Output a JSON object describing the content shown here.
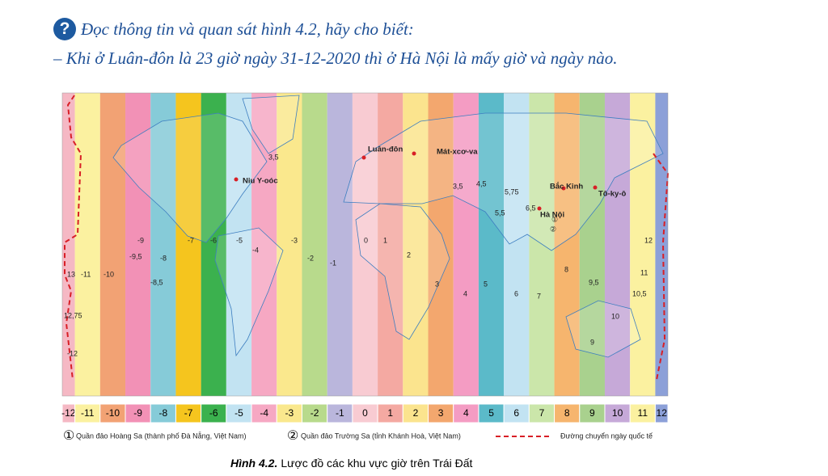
{
  "question": {
    "icon": "?",
    "line1": "Đọc thông tin và quan sát hình 4.2, hãy cho biết:",
    "line2": "– Khi ở Luân-đôn là 23 giờ ngày 31-12-2020 thì ở Hà Nội là mấy giờ và ngày nào."
  },
  "map": {
    "labels": [
      "3,5",
      "Niu Y-oóc",
      "Luân-đôn",
      "Mát-xcơ-va",
      "3,5",
      "4,5",
      "5,75",
      "5,5",
      "Bắc Kinh",
      "Tô-ky-ô",
      "6,5",
      "Hà Nội",
      "①",
      "②",
      "-9",
      "-9,5",
      "-8",
      "-7",
      "-6",
      "-5",
      "-4",
      "-3",
      "-2",
      "-1",
      "0",
      "1",
      "2",
      "3",
      "4",
      "5",
      "6",
      "7",
      "8",
      "9,5",
      "9",
      "10",
      "10,5",
      "11",
      "12",
      "-10",
      "-11",
      "13",
      "-8,5",
      "12,75",
      "-12"
    ]
  },
  "legend": {
    "zones": [
      {
        "label": "-12",
        "color": "#f5b8c4"
      },
      {
        "label": "-11",
        "color": "#fbf1a0"
      },
      {
        "label": "-10",
        "color": "#f2a274"
      },
      {
        "label": "-9",
        "color": "#f291b6"
      },
      {
        "label": "-8",
        "color": "#86cbd8"
      },
      {
        "label": "-7",
        "color": "#f5c51e"
      },
      {
        "label": "-6",
        "color": "#3bb14e"
      },
      {
        "label": "-5",
        "color": "#c2e3f2"
      },
      {
        "label": "-4",
        "color": "#f6a8c3"
      },
      {
        "label": "-3",
        "color": "#fae88d"
      },
      {
        "label": "-2",
        "color": "#b8da8c"
      },
      {
        "label": "-1",
        "color": "#bab6dc"
      },
      {
        "label": "0",
        "color": "#f8cbd2"
      },
      {
        "label": "1",
        "color": "#f4a9a2"
      },
      {
        "label": "2",
        "color": "#fbe48e"
      },
      {
        "label": "3",
        "color": "#f3a76e"
      },
      {
        "label": "4",
        "color": "#f49cc3"
      },
      {
        "label": "5",
        "color": "#5bbac9"
      },
      {
        "label": "6",
        "color": "#c2e3f2"
      },
      {
        "label": "7",
        "color": "#cbe6aa"
      },
      {
        "label": "8",
        "color": "#f6b56e"
      },
      {
        "label": "9",
        "color": "#a9d18e"
      },
      {
        "label": "10",
        "color": "#c6a9d8"
      },
      {
        "label": "11",
        "color": "#fbf1a0"
      },
      {
        "label": "12",
        "color": "#8ca0d8"
      }
    ],
    "notes": [
      {
        "mark": "①",
        "text": "Quần đảo Hoàng Sa (thành phố Đà Nẵng, Việt Nam)"
      },
      {
        "mark": "②",
        "text": "Quần đảo Trường Sa (tỉnh Khánh Hoà, Việt Nam)"
      },
      {
        "mark": "",
        "text": "Đường chuyển ngày quốc tế"
      }
    ]
  },
  "caption": {
    "number": "Hình 4.2.",
    "text": "Lược đồ các khu vực giờ trên Trái Đất"
  }
}
